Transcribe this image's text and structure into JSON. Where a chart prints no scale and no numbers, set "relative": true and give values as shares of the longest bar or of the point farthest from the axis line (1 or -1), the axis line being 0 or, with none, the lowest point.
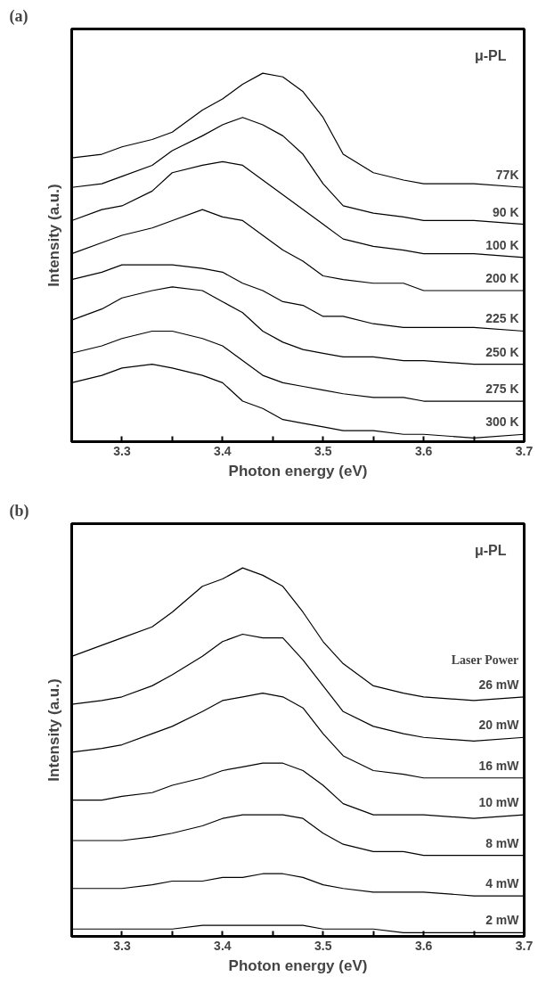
{
  "chart_data": [
    {
      "type": "line",
      "title": "(a)",
      "xlabel": "Photon energy (eV)",
      "ylabel": "Intensity (a.u.)",
      "annotations": [
        "μ-PL"
      ],
      "relative": true,
      "line_style": "solid",
      "x": [
        3.25,
        3.28,
        3.3,
        3.33,
        3.35,
        3.38,
        3.4,
        3.42,
        3.44,
        3.46,
        3.48,
        3.5,
        3.52,
        3.55,
        3.58,
        3.6,
        3.65,
        3.7
      ],
      "xlim": [
        3.25,
        3.7
      ],
      "xticks": [
        {
          "value": 3.25,
          "label": null
        },
        3.3,
        {
          "value": 3.35,
          "label": null
        },
        3.4,
        {
          "value": 3.45,
          "label": null
        },
        3.5,
        {
          "value": 3.55,
          "label": null
        },
        3.6,
        {
          "value": 3.65,
          "label": null
        },
        3.7
      ],
      "series": [
        {
          "name": "77K",
          "color": "#000000",
          "values": [
            0.77,
            0.78,
            0.8,
            0.82,
            0.84,
            0.9,
            0.93,
            0.97,
            1.0,
            0.99,
            0.95,
            0.88,
            0.78,
            0.73,
            0.71,
            0.7,
            0.7,
            0.69
          ]
        },
        {
          "name": "90 K",
          "color": "#000000",
          "values": [
            0.69,
            0.7,
            0.72,
            0.75,
            0.79,
            0.83,
            0.86,
            0.88,
            0.86,
            0.83,
            0.78,
            0.7,
            0.64,
            0.62,
            0.61,
            0.6,
            0.6,
            0.59
          ]
        },
        {
          "name": "100 K",
          "color": "#000000",
          "values": [
            0.6,
            0.63,
            0.64,
            0.68,
            0.73,
            0.75,
            0.76,
            0.75,
            0.71,
            0.67,
            0.63,
            0.59,
            0.55,
            0.53,
            0.52,
            0.51,
            0.51,
            0.5
          ]
        },
        {
          "name": "200 K",
          "color": "#000000",
          "values": [
            0.51,
            0.54,
            0.56,
            0.58,
            0.6,
            0.63,
            0.61,
            0.6,
            0.56,
            0.52,
            0.49,
            0.45,
            0.44,
            0.43,
            0.43,
            0.41,
            0.41,
            0.41
          ]
        },
        {
          "name": "225 K",
          "color": "#000000",
          "values": [
            0.44,
            0.46,
            0.48,
            0.48,
            0.48,
            0.47,
            0.46,
            0.43,
            0.41,
            0.38,
            0.37,
            0.34,
            0.34,
            0.32,
            0.31,
            0.31,
            0.31,
            0.3
          ]
        },
        {
          "name": "250 K",
          "color": "#000000",
          "values": [
            0.33,
            0.36,
            0.39,
            0.41,
            0.42,
            0.41,
            0.38,
            0.35,
            0.3,
            0.27,
            0.25,
            0.24,
            0.23,
            0.23,
            0.22,
            0.22,
            0.21,
            0.21
          ]
        },
        {
          "name": "275 K",
          "color": "#000000",
          "values": [
            0.24,
            0.26,
            0.28,
            0.3,
            0.3,
            0.28,
            0.26,
            0.22,
            0.18,
            0.16,
            0.15,
            0.14,
            0.13,
            0.12,
            0.12,
            0.11,
            0.11,
            0.11
          ]
        },
        {
          "name": "300 K",
          "color": "#000000",
          "values": [
            0.16,
            0.18,
            0.2,
            0.21,
            0.2,
            0.18,
            0.16,
            0.11,
            0.09,
            0.06,
            0.05,
            0.04,
            0.03,
            0.03,
            0.02,
            0.02,
            0.01,
            0.02
          ]
        }
      ]
    },
    {
      "type": "line",
      "title": "(b)",
      "xlabel": "Photon energy (eV)",
      "ylabel": "Intensity (a.u.)",
      "annotations": [
        "μ-PL"
      ],
      "legend_title": "Laser Power",
      "relative": true,
      "line_style": "solid",
      "x": [
        3.25,
        3.28,
        3.3,
        3.33,
        3.35,
        3.38,
        3.4,
        3.42,
        3.44,
        3.46,
        3.48,
        3.5,
        3.52,
        3.55,
        3.58,
        3.6,
        3.65,
        3.7
      ],
      "xlim": [
        3.25,
        3.7
      ],
      "xticks": [
        {
          "value": 3.25,
          "label": null
        },
        3.3,
        {
          "value": 3.35,
          "label": null
        },
        3.4,
        {
          "value": 3.45,
          "label": null
        },
        3.5,
        {
          "value": 3.55,
          "label": null
        },
        3.6,
        {
          "value": 3.65,
          "label": null
        },
        3.7
      ],
      "series": [
        {
          "name": "26 mW",
          "color": "#000000",
          "values": [
            0.76,
            0.79,
            0.81,
            0.84,
            0.88,
            0.95,
            0.97,
            1.0,
            0.98,
            0.95,
            0.88,
            0.8,
            0.74,
            0.68,
            0.66,
            0.65,
            0.64,
            0.65
          ]
        },
        {
          "name": "20 mW",
          "color": "#000000",
          "values": [
            0.63,
            0.64,
            0.65,
            0.68,
            0.71,
            0.76,
            0.8,
            0.82,
            0.81,
            0.81,
            0.75,
            0.68,
            0.61,
            0.57,
            0.55,
            0.54,
            0.53,
            0.54
          ]
        },
        {
          "name": "16 mW",
          "color": "#000000",
          "values": [
            0.5,
            0.51,
            0.52,
            0.55,
            0.57,
            0.61,
            0.64,
            0.65,
            0.66,
            0.65,
            0.62,
            0.55,
            0.49,
            0.45,
            0.44,
            0.43,
            0.43,
            0.43
          ]
        },
        {
          "name": "10 mW",
          "color": "#000000",
          "values": [
            0.37,
            0.37,
            0.38,
            0.39,
            0.41,
            0.43,
            0.45,
            0.46,
            0.47,
            0.47,
            0.45,
            0.41,
            0.36,
            0.33,
            0.33,
            0.33,
            0.32,
            0.33
          ]
        },
        {
          "name": "8 mW",
          "color": "#000000",
          "values": [
            0.26,
            0.26,
            0.26,
            0.27,
            0.28,
            0.3,
            0.32,
            0.33,
            0.33,
            0.33,
            0.32,
            0.28,
            0.25,
            0.23,
            0.23,
            0.22,
            0.22,
            0.22
          ]
        },
        {
          "name": "4 mW",
          "color": "#000000",
          "values": [
            0.13,
            0.13,
            0.13,
            0.14,
            0.15,
            0.15,
            0.16,
            0.16,
            0.17,
            0.17,
            0.16,
            0.14,
            0.13,
            0.12,
            0.12,
            0.12,
            0.11,
            0.11
          ]
        },
        {
          "name": "2 mW",
          "color": "#000000",
          "values": [
            0.02,
            0.02,
            0.02,
            0.02,
            0.02,
            0.03,
            0.03,
            0.03,
            0.03,
            0.03,
            0.03,
            0.02,
            0.02,
            0.02,
            0.01,
            0.01,
            0.01,
            0.01
          ]
        }
      ]
    }
  ]
}
